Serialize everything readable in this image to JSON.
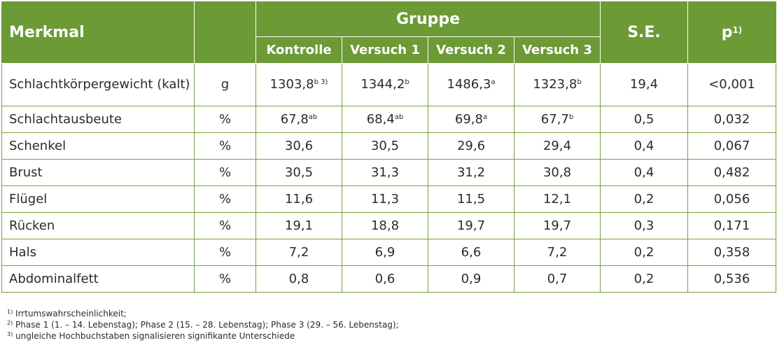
{
  "header": {
    "merkmal": "Merkmal",
    "gruppe": "Gruppe",
    "kontrolle": "Kontrolle",
    "versuch1": "Versuch 1",
    "versuch2": "Versuch 2",
    "versuch3": "Versuch 3",
    "se": "S.E.",
    "p": "p",
    "p_sup": "1)"
  },
  "rows": [
    {
      "merkmal": "Schlachtkörpergewicht (kalt)",
      "unit": "g",
      "kontrolle": "1303,8",
      "kontrolle_sup": "b 3)",
      "versuch1": "1344,2",
      "versuch1_sup": "b",
      "versuch2": "1486,3",
      "versuch2_sup": "a",
      "versuch3": "1323,8",
      "versuch3_sup": "b",
      "se": "19,4",
      "p": "<0,001"
    },
    {
      "merkmal": "Schlachtausbeute",
      "unit": "%",
      "kontrolle": "67,8",
      "kontrolle_sup": "ab",
      "versuch1": "68,4",
      "versuch1_sup": "ab",
      "versuch2": "69,8",
      "versuch2_sup": "a",
      "versuch3": "67,7",
      "versuch3_sup": "b",
      "se": "0,5",
      "p": "0,032"
    },
    {
      "merkmal": "Schenkel",
      "unit": "%",
      "kontrolle": "30,6",
      "versuch1": "30,5",
      "versuch2": "29,6",
      "versuch3": "29,4",
      "se": "0,4",
      "p": "0,067"
    },
    {
      "merkmal": "Brust",
      "unit": "%",
      "kontrolle": "30,5",
      "versuch1": "31,3",
      "versuch2": "31,2",
      "versuch3": "30,8",
      "se": "0,4",
      "p": "0,482"
    },
    {
      "merkmal": "Flügel",
      "unit": "%",
      "kontrolle": "11,6",
      "versuch1": "11,3",
      "versuch2": "11,5",
      "versuch3": "12,1",
      "se": "0,2",
      "p": "0,056"
    },
    {
      "merkmal": "Rücken",
      "unit": "%",
      "kontrolle": "19,1",
      "versuch1": "18,8",
      "versuch2": "19,7",
      "versuch3": "19,7",
      "se": "0,3",
      "p": "0,171"
    },
    {
      "merkmal": "Hals",
      "unit": "%",
      "kontrolle": "7,2",
      "versuch1": "6,9",
      "versuch2": "6,6",
      "versuch3": "7,2",
      "se": "0,2",
      "p": "0,358"
    },
    {
      "merkmal": "Abdominalfett",
      "unit": "%",
      "kontrolle": "0,8",
      "versuch1": "0,6",
      "versuch2": "0,9",
      "versuch3": "0,7",
      "se": "0,2",
      "p": "0,536"
    }
  ],
  "footnotes": [
    {
      "sup": "1)",
      "text": "Irrtumswahrscheinlichkeit;"
    },
    {
      "sup": "2)",
      "text": "Phase 1 (1. – 14. Lebenstag); Phase 2 (15. – 28. Lebenstag); Phase 3 (29. – 56. Lebenstag);"
    },
    {
      "sup": "3)",
      "text": "ungleiche Hochbuchstaben signalisieren signifikante Unterschiede"
    }
  ]
}
